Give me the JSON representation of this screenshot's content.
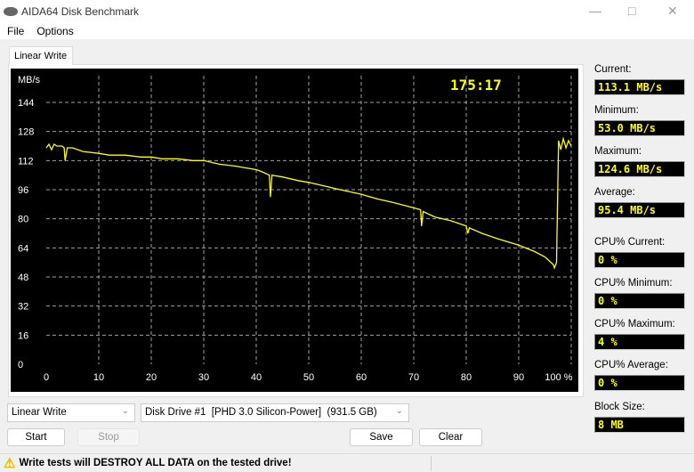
{
  "window": {
    "title": "AIDA64 Disk Benchmark"
  },
  "menu": [
    "File",
    "Options"
  ],
  "tab": "Linear Write",
  "chart_data": {
    "type": "line",
    "ylabel": "MB/s",
    "timer": "175:17",
    "y_ticks": [
      "0",
      "16",
      "32",
      "48",
      "64",
      "80",
      "96",
      "112",
      "128",
      "144"
    ],
    "x_ticks": [
      "0",
      "10",
      "20",
      "30",
      "40",
      "50",
      "60",
      "70",
      "80",
      "90",
      "100 %"
    ],
    "xlim": [
      0,
      100
    ],
    "ylim": [
      0,
      160
    ],
    "grid": true,
    "colors": {
      "line": "#ffff00",
      "background": "#000000",
      "grid": "#a0a0a0",
      "text": "#ffffff"
    },
    "x": [
      0,
      0.5,
      1,
      1.5,
      2,
      2.5,
      3,
      3.4,
      3.6,
      4,
      5,
      7,
      10,
      12,
      15,
      18,
      20,
      22,
      25,
      28,
      30,
      33,
      36,
      40,
      41,
      42.5,
      42.7,
      43,
      45,
      48,
      50,
      53,
      56,
      60,
      63,
      66,
      70,
      71.3,
      71.5,
      71.8,
      74,
      77,
      80,
      80.3,
      80.6,
      83,
      86,
      90,
      93,
      95,
      96.6,
      96.8,
      97.2,
      97.3,
      97.6,
      98,
      98.5,
      99,
      99.5,
      100
    ],
    "values": [
      119,
      121,
      118,
      121,
      120,
      120,
      120,
      119,
      112,
      119,
      119,
      117,
      116,
      115,
      115,
      114,
      114,
      113,
      113,
      112,
      112,
      110,
      109,
      107,
      106,
      104,
      92,
      104,
      103,
      101,
      100,
      98,
      96,
      93.5,
      91,
      89,
      86,
      85,
      76,
      84,
      81,
      79,
      76,
      72,
      75,
      72,
      69,
      65.5,
      62,
      59,
      54.8,
      53,
      56,
      74,
      123,
      118,
      124,
      119,
      123,
      120
    ]
  },
  "stats": [
    {
      "label": "Current:",
      "value": "113.1 MB/s"
    },
    {
      "label": "Minimum:",
      "value": "53.0 MB/s"
    },
    {
      "label": "Maximum:",
      "value": "124.6 MB/s"
    },
    {
      "label": "Average:",
      "value": "95.4 MB/s"
    },
    {
      "label": "CPU% Current:",
      "value": "0 %"
    },
    {
      "label": "CPU% Minimum:",
      "value": "0 %"
    },
    {
      "label": "CPU% Maximum:",
      "value": "4 %"
    },
    {
      "label": "CPU% Average:",
      "value": "0 %"
    },
    {
      "label": "Block Size:",
      "value": "8 MB"
    }
  ],
  "controls": {
    "test_select": "Linear Write",
    "drive_select": "Disk Drive #1  [PHD 3.0 Silicon-Power]  (931.5 GB)",
    "start": "Start",
    "stop": "Stop",
    "save": "Save",
    "clear": "Clear"
  },
  "status": {
    "warning": "Write tests will DESTROY ALL DATA on the tested drive!"
  }
}
